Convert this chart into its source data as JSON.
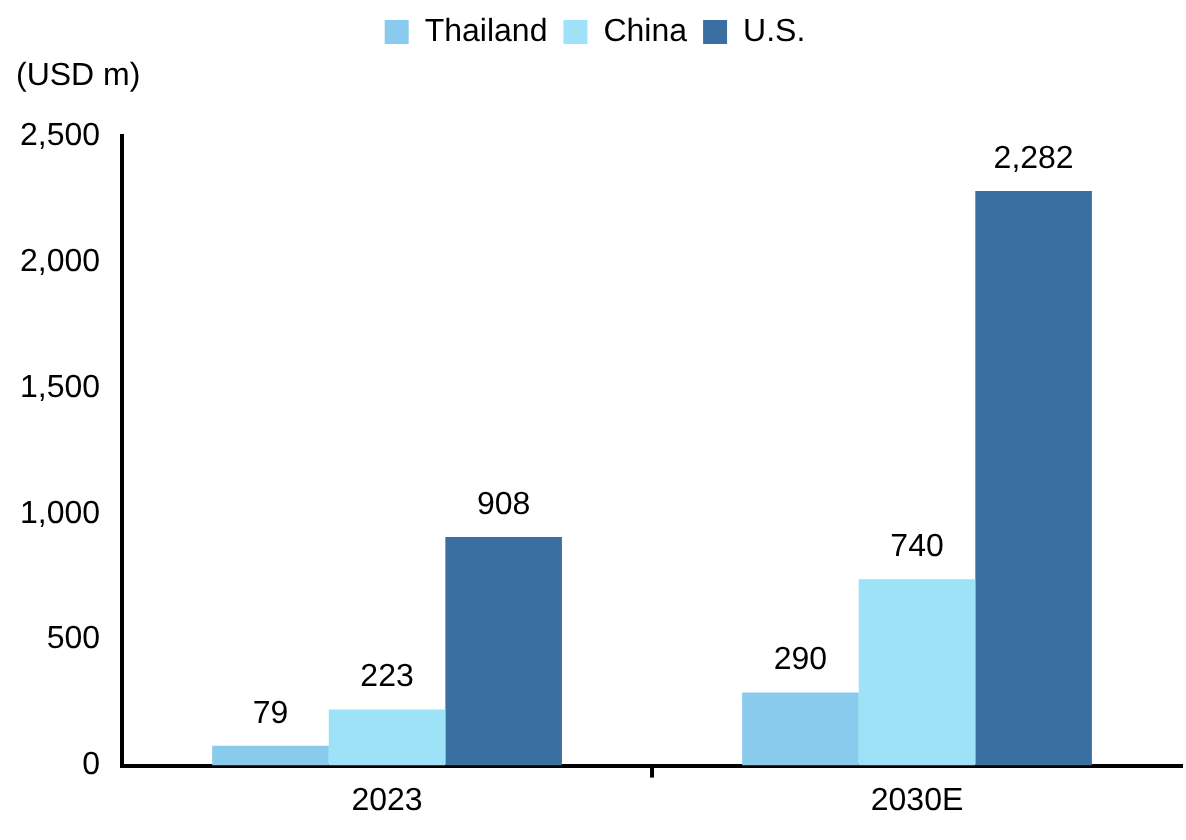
{
  "chart_data": {
    "type": "bar",
    "ylabel": "(USD m)",
    "categories": [
      "2023",
      "2030E"
    ],
    "series": [
      {
        "name": "Thailand",
        "color": "#88cbed",
        "values": [
          79,
          290
        ],
        "value_labels": [
          "79",
          "290"
        ]
      },
      {
        "name": "China",
        "color": "#9ee2f7",
        "values": [
          223,
          740
        ],
        "value_labels": [
          "223",
          "740"
        ]
      },
      {
        "name": "U.S.",
        "color": "#3a6fa2",
        "values": [
          908,
          2282
        ],
        "value_labels": [
          "908",
          "2,282"
        ]
      }
    ],
    "ylim": [
      0,
      2500
    ],
    "yticks": [
      0,
      500,
      {
        "value": 1000,
        "label": "1,000"
      },
      {
        "value": 1500,
        "label": "1,500"
      },
      {
        "value": 2000,
        "label": "2,000"
      },
      {
        "value": 2500,
        "label": "2,500"
      }
    ],
    "grid": false,
    "legend": "top",
    "data_labels": true
  }
}
